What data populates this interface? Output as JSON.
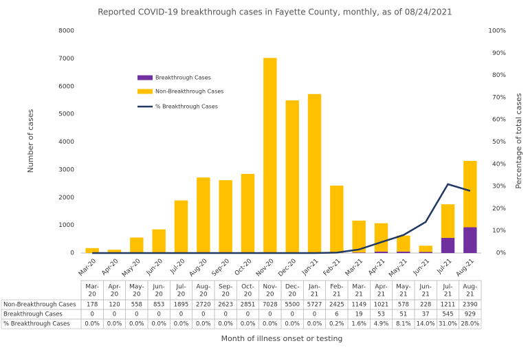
{
  "chart_data": {
    "type": "bar",
    "stacked": true,
    "title": "Reported COVID-19 breakthrough cases in Fayette County, monthly, as of 08/24/2021",
    "y_label": "Number of cases",
    "y2_label": "Percentage of total cases",
    "x_label": "Month of illness onset or testing",
    "categories": [
      "Mar-20",
      "Apr-20",
      "May-20",
      "Jun-20",
      "Jul-20",
      "Aug-20",
      "Sep-20",
      "Oct-20",
      "Nov-20",
      "Dec-20",
      "Jan-21",
      "Feb-21",
      "Mar-21",
      "Apr-21",
      "May-21",
      "Jun-21",
      "Jul-21",
      "Aug-21"
    ],
    "series": [
      {
        "name": "Breakthrough Cases",
        "color": "#7030a0",
        "values": [
          0,
          0,
          0,
          0,
          0,
          0,
          0,
          0,
          0,
          0,
          0,
          6,
          19,
          53,
          51,
          37,
          545,
          929
        ]
      },
      {
        "name": "Non-Breakthrough Cases",
        "color": "#ffc000",
        "values": [
          178,
          120,
          558,
          853,
          1895,
          2720,
          2623,
          2851,
          7028,
          5500,
          5727,
          2425,
          1149,
          1021,
          578,
          228,
          1211,
          2390
        ]
      },
      {
        "name": "% Breakthrough Cases",
        "type": "line",
        "axis": "y2",
        "color": "#1f3864",
        "values": [
          0,
          0,
          0,
          0,
          0,
          0,
          0,
          0,
          0,
          0,
          0,
          0.2,
          1.6,
          4.9,
          8.1,
          14.0,
          31.0,
          28.0
        ],
        "value_labels": [
          "0.0%",
          "0.0%",
          "0.0%",
          "0.0%",
          "0.0%",
          "0.0%",
          "0.0%",
          "0.0%",
          "0.0%",
          "0.0%",
          "0.0%",
          "0.2%",
          "1.6%",
          "4.9%",
          "8.1%",
          "14.0%",
          "31.0%",
          "28.0%"
        ]
      }
    ],
    "ylim": [
      0,
      8000
    ],
    "yticks": [
      0,
      1000,
      2000,
      3000,
      4000,
      5000,
      6000,
      7000,
      8000
    ],
    "y2lim": [
      0,
      100
    ],
    "y2ticks": [
      {
        "value": 0,
        "label": "0%"
      },
      {
        "value": 10,
        "label": "10%"
      },
      {
        "value": 20,
        "label": "20%"
      },
      {
        "value": 30,
        "label": "30%"
      },
      {
        "value": 40,
        "label": "40%"
      },
      {
        "value": 50,
        "label": "50%"
      },
      {
        "value": 60,
        "label": "60%"
      },
      {
        "value": 70,
        "label": "70%"
      },
      {
        "value": 80,
        "label": "80%"
      },
      {
        "value": 90,
        "label": "90%"
      },
      {
        "value": 100,
        "label": "100%"
      }
    ],
    "grid": false,
    "legend": "upper left"
  }
}
